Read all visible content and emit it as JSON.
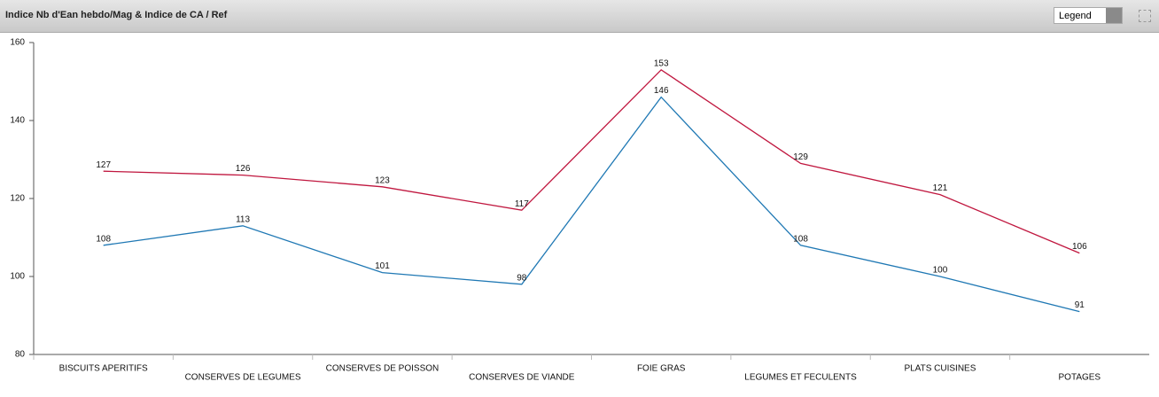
{
  "legend_button": "Legend",
  "chart_data": {
    "type": "line",
    "title": "Indice Nb d'Ean hebdo/Mag & Indice de CA / Ref",
    "categories": [
      "BISCUITS APERITIFS",
      "CONSERVES DE LEGUMES",
      "CONSERVES DE POISSON",
      "CONSERVES DE VIANDE",
      "FOIE GRAS",
      "LEGUMES ET FECULENTS",
      "PLATS CUISINES",
      "POTAGES"
    ],
    "series": [
      {
        "color": "#c0173f",
        "values": [
          127,
          126,
          123,
          117,
          153,
          129,
          121,
          106
        ]
      },
      {
        "color": "#1f78b4",
        "values": [
          108,
          113,
          101,
          98,
          146,
          108,
          100,
          91
        ]
      }
    ],
    "ylim": [
      80,
      160
    ],
    "yticks": [
      80,
      100,
      120,
      140,
      160
    ],
    "grid": false
  }
}
